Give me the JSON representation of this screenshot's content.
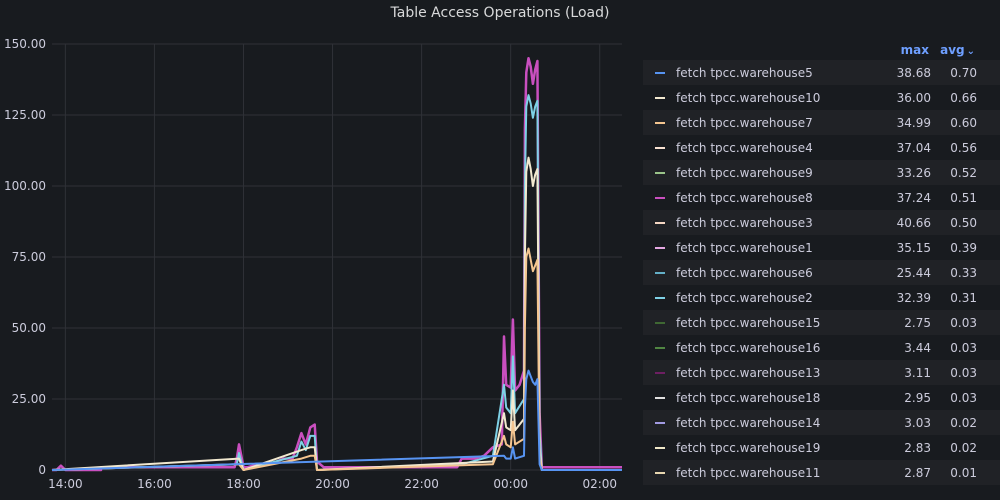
{
  "panel": {
    "title": "Table Access Operations (Load)"
  },
  "legend": {
    "col_max": "max",
    "col_avg": "avg",
    "sort_icon": "chevron-down-icon"
  },
  "chart_data": {
    "type": "line",
    "title": "Table Access Operations (Load)",
    "x_ticks": [
      "14:00",
      "16:00",
      "18:00",
      "20:00",
      "22:00",
      "00:00",
      "02:00"
    ],
    "x_tick_hours": [
      14,
      16,
      18,
      20,
      22,
      24,
      26
    ],
    "xlim_hours": [
      13.7,
      26.5
    ],
    "y_ticks": [
      "0",
      "25.00",
      "50.00",
      "75.00",
      "100.00",
      "125.00",
      "150.00"
    ],
    "ylim": [
      0,
      150
    ],
    "grid": true,
    "legend_position": "right",
    "series": [
      {
        "name": "fetch tpcc.warehouse5",
        "color": "#5794f2",
        "max": "38.68",
        "avg": "0.70"
      },
      {
        "name": "fetch tpcc.warehouse10",
        "color": "#f2e9d0",
        "max": "36.00",
        "avg": "0.66"
      },
      {
        "name": "fetch tpcc.warehouse7",
        "color": "#f4c590",
        "max": "34.99",
        "avg": "0.60"
      },
      {
        "name": "fetch tpcc.warehouse4",
        "color": "#f9e2d2",
        "max": "37.04",
        "avg": "0.56"
      },
      {
        "name": "fetch tpcc.warehouse9",
        "color": "#9ac48a",
        "max": "33.26",
        "avg": "0.52"
      },
      {
        "name": "fetch tpcc.warehouse8",
        "color": "#c94fbf",
        "max": "37.24",
        "avg": "0.51"
      },
      {
        "name": "fetch tpcc.warehouse3",
        "color": "#f5d7c4",
        "max": "40.66",
        "avg": "0.50"
      },
      {
        "name": "fetch tpcc.warehouse1",
        "color": "#e5a8e2",
        "max": "35.15",
        "avg": "0.39"
      },
      {
        "name": "fetch tpcc.warehouse6",
        "color": "#64b0c8",
        "max": "25.44",
        "avg": "0.33"
      },
      {
        "name": "fetch tpcc.warehouse2",
        "color": "#7ed1e6",
        "max": "32.39",
        "avg": "0.31"
      },
      {
        "name": "fetch tpcc.warehouse15",
        "color": "#3f6833",
        "max": "2.75",
        "avg": "0.03"
      },
      {
        "name": "fetch tpcc.warehouse16",
        "color": "#508642",
        "max": "3.44",
        "avg": "0.03"
      },
      {
        "name": "fetch tpcc.warehouse13",
        "color": "#6d1f62",
        "max": "3.11",
        "avg": "0.03"
      },
      {
        "name": "fetch tpcc.warehouse18",
        "color": "#e0e0e0",
        "max": "2.95",
        "avg": "0.03"
      },
      {
        "name": "fetch tpcc.warehouse14",
        "color": "#a29be2",
        "max": "3.03",
        "avg": "0.02"
      },
      {
        "name": "fetch tpcc.warehouse19",
        "color": "#f0e8c8",
        "max": "2.83",
        "avg": "0.02"
      },
      {
        "name": "fetch tpcc.warehouse11",
        "color": "#e8d7b0",
        "max": "2.87",
        "avg": "0.01"
      }
    ],
    "stack": [
      {
        "color": "#c94fbf",
        "points": [
          [
            13.7,
            0
          ],
          [
            13.8,
            0
          ],
          [
            13.9,
            1.5
          ],
          [
            14.0,
            0
          ],
          [
            14.8,
            0
          ],
          [
            14.8,
            1
          ],
          [
            16.0,
            1
          ],
          [
            17.0,
            1
          ],
          [
            17.8,
            1
          ],
          [
            17.85,
            4
          ],
          [
            17.9,
            9
          ],
          [
            17.95,
            5
          ],
          [
            18.0,
            1
          ],
          [
            18.1,
            1
          ],
          [
            18.3,
            2
          ],
          [
            18.6,
            2
          ],
          [
            18.9,
            4
          ],
          [
            19.1,
            4
          ],
          [
            19.2,
            8
          ],
          [
            19.3,
            13
          ],
          [
            19.4,
            9
          ],
          [
            19.5,
            15
          ],
          [
            19.6,
            16
          ],
          [
            19.65,
            3
          ],
          [
            19.8,
            1
          ],
          [
            20.0,
            1
          ],
          [
            21.0,
            1
          ],
          [
            21.8,
            1
          ],
          [
            22.8,
            1
          ],
          [
            22.9,
            4
          ],
          [
            23.2,
            4
          ],
          [
            23.4,
            5
          ],
          [
            23.6,
            8
          ],
          [
            23.8,
            9
          ],
          [
            23.85,
            47
          ],
          [
            23.9,
            30
          ],
          [
            24.0,
            29
          ],
          [
            24.05,
            53
          ],
          [
            24.1,
            28
          ],
          [
            24.2,
            30
          ],
          [
            24.3,
            35
          ],
          [
            24.32,
            120
          ],
          [
            24.35,
            140
          ],
          [
            24.4,
            145
          ],
          [
            24.45,
            142
          ],
          [
            24.5,
            136
          ],
          [
            24.55,
            141
          ],
          [
            24.6,
            144
          ],
          [
            24.65,
            20
          ],
          [
            24.7,
            1
          ],
          [
            25.0,
            1
          ],
          [
            26.0,
            1
          ],
          [
            26.5,
            1
          ]
        ]
      },
      {
        "color": "#7ed1e6",
        "points": [
          [
            13.7,
            0
          ],
          [
            17.85,
            2
          ],
          [
            17.9,
            6
          ],
          [
            17.95,
            3
          ],
          [
            18.0,
            0
          ],
          [
            19.2,
            5
          ],
          [
            19.3,
            10
          ],
          [
            19.4,
            7
          ],
          [
            19.5,
            12
          ],
          [
            19.6,
            12
          ],
          [
            19.65,
            0
          ],
          [
            22.9,
            2
          ],
          [
            23.6,
            5
          ],
          [
            23.85,
            30
          ],
          [
            23.9,
            22
          ],
          [
            24.0,
            20
          ],
          [
            24.05,
            40
          ],
          [
            24.1,
            20
          ],
          [
            24.3,
            25
          ],
          [
            24.32,
            100
          ],
          [
            24.35,
            128
          ],
          [
            24.4,
            132
          ],
          [
            24.45,
            129
          ],
          [
            24.5,
            124
          ],
          [
            24.55,
            128
          ],
          [
            24.6,
            130
          ],
          [
            24.65,
            14
          ],
          [
            24.7,
            0
          ],
          [
            26.5,
            0
          ]
        ]
      },
      {
        "color": "#f2e9d0",
        "points": [
          [
            13.7,
            0
          ],
          [
            17.9,
            4
          ],
          [
            18.0,
            0
          ],
          [
            19.3,
            7
          ],
          [
            19.5,
            8
          ],
          [
            19.6,
            8
          ],
          [
            19.65,
            0
          ],
          [
            23.6,
            3
          ],
          [
            23.85,
            20
          ],
          [
            23.9,
            15
          ],
          [
            24.0,
            14
          ],
          [
            24.05,
            28
          ],
          [
            24.1,
            14
          ],
          [
            24.3,
            18
          ],
          [
            24.32,
            75
          ],
          [
            24.35,
            105
          ],
          [
            24.4,
            110
          ],
          [
            24.45,
            106
          ],
          [
            24.5,
            100
          ],
          [
            24.55,
            104
          ],
          [
            24.6,
            106
          ],
          [
            24.65,
            8
          ],
          [
            24.7,
            0
          ],
          [
            26.5,
            0
          ]
        ]
      },
      {
        "color": "#f4c590",
        "points": [
          [
            13.7,
            0
          ],
          [
            17.9,
            2
          ],
          [
            18.0,
            0
          ],
          [
            19.3,
            4
          ],
          [
            19.5,
            5
          ],
          [
            19.6,
            5
          ],
          [
            19.65,
            0
          ],
          [
            23.6,
            2
          ],
          [
            23.85,
            12
          ],
          [
            23.9,
            9
          ],
          [
            24.0,
            8
          ],
          [
            24.05,
            17
          ],
          [
            24.1,
            9
          ],
          [
            24.3,
            11
          ],
          [
            24.32,
            50
          ],
          [
            24.35,
            75
          ],
          [
            24.4,
            78
          ],
          [
            24.45,
            74
          ],
          [
            24.5,
            70
          ],
          [
            24.55,
            72
          ],
          [
            24.6,
            74
          ],
          [
            24.65,
            5
          ],
          [
            24.7,
            0
          ],
          [
            26.5,
            0
          ]
        ]
      },
      {
        "color": "#5794f2",
        "points": [
          [
            13.7,
            0
          ],
          [
            23.85,
            5
          ],
          [
            23.9,
            4
          ],
          [
            24.0,
            4
          ],
          [
            24.05,
            8
          ],
          [
            24.1,
            4
          ],
          [
            24.3,
            5
          ],
          [
            24.32,
            22
          ],
          [
            24.35,
            32
          ],
          [
            24.4,
            35
          ],
          [
            24.45,
            33
          ],
          [
            24.5,
            31
          ],
          [
            24.55,
            30
          ],
          [
            24.6,
            32
          ],
          [
            24.65,
            2
          ],
          [
            24.7,
            0
          ],
          [
            26.5,
            0
          ]
        ]
      }
    ]
  }
}
